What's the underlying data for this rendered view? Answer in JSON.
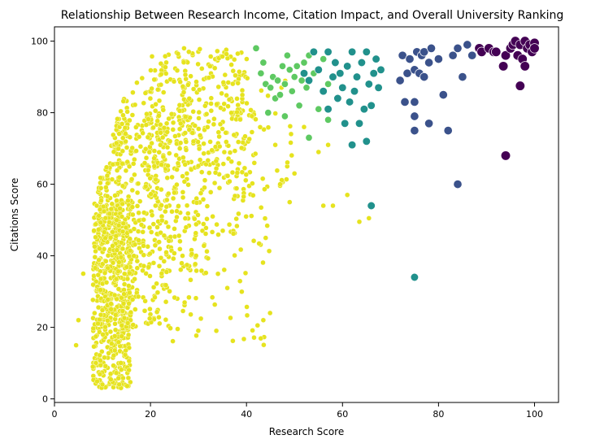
{
  "chart_data": {
    "type": "scatter",
    "title": "Relationship Between Research Income, Citation Impact, and Overall University Ranking",
    "xlabel": "Research Score",
    "ylabel": "Citations Score",
    "xlim": [
      0,
      105
    ],
    "ylim": [
      -1,
      104
    ],
    "xticks": [
      0,
      20,
      40,
      60,
      80,
      100
    ],
    "yticks": [
      0,
      20,
      40,
      60,
      80,
      100
    ],
    "grid": false,
    "legend": "none",
    "color_scale": "viridis (dark purple = best rank, yellow = lower rank)",
    "colors": {
      "purple": "#440154",
      "indigo": "#3b528b",
      "teal": "#21918c",
      "green": "#5ec962",
      "yellow": "#e6e31e",
      "marker_edge": "#ffffff"
    },
    "clusters": [
      {
        "n": 520,
        "x": [
          8,
          16
        ],
        "y": [
          3,
          55
        ]
      },
      {
        "n": 380,
        "x": [
          9,
          24
        ],
        "y": [
          20,
          80
        ]
      },
      {
        "n": 260,
        "x": [
          12,
          32
        ],
        "y": [
          35,
          92
        ]
      },
      {
        "n": 200,
        "x": [
          20,
          40
        ],
        "y": [
          45,
          98
        ]
      },
      {
        "n": 110,
        "x": [
          26,
          42
        ],
        "y": [
          60,
          95
        ]
      },
      {
        "n": 70,
        "x": [
          22,
          45
        ],
        "y": [
          15,
          60
        ]
      },
      {
        "n": 40,
        "x": [
          36,
          50
        ],
        "y": [
          55,
          90
        ]
      }
    ],
    "points": [
      {
        "x": 4.5,
        "y": 15,
        "s": "yellow"
      },
      {
        "x": 5,
        "y": 22,
        "s": "yellow"
      },
      {
        "x": 6,
        "y": 35,
        "s": "yellow"
      },
      {
        "x": 8,
        "y": 9,
        "s": "yellow"
      },
      {
        "x": 10,
        "y": 4,
        "s": "yellow"
      },
      {
        "x": 27,
        "y": 98,
        "s": "yellow"
      },
      {
        "x": 28,
        "y": 97,
        "s": "yellow"
      },
      {
        "x": 43.5,
        "y": 22,
        "s": "yellow"
      },
      {
        "x": 36,
        "y": 31,
        "s": "yellow"
      },
      {
        "x": 49,
        "y": 55,
        "s": "yellow"
      },
      {
        "x": 50,
        "y": 63,
        "s": "yellow"
      },
      {
        "x": 56,
        "y": 54,
        "s": "yellow"
      },
      {
        "x": 58,
        "y": 54,
        "s": "yellow"
      },
      {
        "x": 61,
        "y": 57,
        "s": "yellow"
      },
      {
        "x": 63.5,
        "y": 49.5,
        "s": "yellow"
      },
      {
        "x": 65.5,
        "y": 50.5,
        "s": "yellow"
      },
      {
        "x": 44,
        "y": 45,
        "s": "yellow"
      },
      {
        "x": 47,
        "y": 60,
        "s": "yellow"
      },
      {
        "x": 52,
        "y": 76,
        "s": "yellow"
      },
      {
        "x": 55,
        "y": 69,
        "s": "yellow"
      },
      {
        "x": 57,
        "y": 71,
        "s": "yellow"
      },
      {
        "x": 46,
        "y": 71,
        "s": "yellow"
      },
      {
        "x": 42,
        "y": 98,
        "s": "green"
      },
      {
        "x": 43,
        "y": 91,
        "s": "green"
      },
      {
        "x": 44,
        "y": 88,
        "s": "green"
      },
      {
        "x": 45,
        "y": 87,
        "s": "green"
      },
      {
        "x": 45.5,
        "y": 90,
        "s": "green"
      },
      {
        "x": 46,
        "y": 84,
        "s": "green"
      },
      {
        "x": 46.5,
        "y": 89,
        "s": "green"
      },
      {
        "x": 47,
        "y": 85,
        "s": "green"
      },
      {
        "x": 47.5,
        "y": 93,
        "s": "green"
      },
      {
        "x": 48,
        "y": 88,
        "s": "green"
      },
      {
        "x": 48.5,
        "y": 96,
        "s": "green"
      },
      {
        "x": 49,
        "y": 92,
        "s": "green"
      },
      {
        "x": 49.5,
        "y": 86,
        "s": "green"
      },
      {
        "x": 50,
        "y": 90,
        "s": "green"
      },
      {
        "x": 50.5,
        "y": 93,
        "s": "green"
      },
      {
        "x": 51,
        "y": 82,
        "s": "green"
      },
      {
        "x": 51.5,
        "y": 89,
        "s": "green"
      },
      {
        "x": 52,
        "y": 94,
        "s": "green"
      },
      {
        "x": 52.5,
        "y": 87,
        "s": "green"
      },
      {
        "x": 53,
        "y": 96,
        "s": "green"
      },
      {
        "x": 54,
        "y": 91,
        "s": "green"
      },
      {
        "x": 55,
        "y": 81,
        "s": "green"
      },
      {
        "x": 56,
        "y": 95,
        "s": "green"
      },
      {
        "x": 57,
        "y": 88,
        "s": "green"
      },
      {
        "x": 44.5,
        "y": 80,
        "s": "green"
      },
      {
        "x": 48,
        "y": 79,
        "s": "green"
      },
      {
        "x": 53,
        "y": 73,
        "s": "green"
      },
      {
        "x": 57,
        "y": 78,
        "s": "green"
      },
      {
        "x": 43.5,
        "y": 94,
        "s": "green"
      },
      {
        "x": 52,
        "y": 91,
        "s": "teal"
      },
      {
        "x": 53,
        "y": 89,
        "s": "teal"
      },
      {
        "x": 54,
        "y": 97,
        "s": "teal"
      },
      {
        "x": 55,
        "y": 92,
        "s": "teal"
      },
      {
        "x": 56,
        "y": 86,
        "s": "teal"
      },
      {
        "x": 57,
        "y": 97,
        "s": "teal"
      },
      {
        "x": 58,
        "y": 90,
        "s": "teal"
      },
      {
        "x": 58.5,
        "y": 94,
        "s": "teal"
      },
      {
        "x": 59,
        "y": 84,
        "s": "teal"
      },
      {
        "x": 59.5,
        "y": 91,
        "s": "teal"
      },
      {
        "x": 60,
        "y": 87,
        "s": "teal"
      },
      {
        "x": 61,
        "y": 93,
        "s": "teal"
      },
      {
        "x": 61.5,
        "y": 83,
        "s": "teal"
      },
      {
        "x": 62,
        "y": 97,
        "s": "teal"
      },
      {
        "x": 62.5,
        "y": 86,
        "s": "teal"
      },
      {
        "x": 63,
        "y": 90,
        "s": "teal"
      },
      {
        "x": 63.5,
        "y": 77,
        "s": "teal"
      },
      {
        "x": 64,
        "y": 94,
        "s": "teal"
      },
      {
        "x": 64.5,
        "y": 81,
        "s": "teal"
      },
      {
        "x": 65,
        "y": 97,
        "s": "teal"
      },
      {
        "x": 65.5,
        "y": 88,
        "s": "teal"
      },
      {
        "x": 66,
        "y": 82,
        "s": "teal"
      },
      {
        "x": 66.5,
        "y": 91,
        "s": "teal"
      },
      {
        "x": 67,
        "y": 95,
        "s": "teal"
      },
      {
        "x": 67.5,
        "y": 87,
        "s": "teal"
      },
      {
        "x": 68,
        "y": 92,
        "s": "teal"
      },
      {
        "x": 62,
        "y": 71,
        "s": "teal"
      },
      {
        "x": 65,
        "y": 72,
        "s": "teal"
      },
      {
        "x": 60.5,
        "y": 77,
        "s": "teal"
      },
      {
        "x": 66,
        "y": 54,
        "s": "teal"
      },
      {
        "x": 75,
        "y": 34,
        "s": "teal"
      },
      {
        "x": 57,
        "y": 81,
        "s": "teal"
      },
      {
        "x": 72,
        "y": 89,
        "s": "indigo"
      },
      {
        "x": 72.5,
        "y": 96,
        "s": "indigo"
      },
      {
        "x": 73,
        "y": 83,
        "s": "indigo"
      },
      {
        "x": 73.5,
        "y": 91,
        "s": "indigo"
      },
      {
        "x": 74,
        "y": 95,
        "s": "indigo"
      },
      {
        "x": 75,
        "y": 92,
        "s": "indigo"
      },
      {
        "x": 75,
        "y": 83,
        "s": "indigo"
      },
      {
        "x": 75.5,
        "y": 97,
        "s": "indigo"
      },
      {
        "x": 75,
        "y": 79,
        "s": "indigo"
      },
      {
        "x": 75,
        "y": 75,
        "s": "indigo"
      },
      {
        "x": 76,
        "y": 91,
        "s": "indigo"
      },
      {
        "x": 76.5,
        "y": 96,
        "s": "indigo"
      },
      {
        "x": 77,
        "y": 97,
        "s": "indigo"
      },
      {
        "x": 78,
        "y": 77,
        "s": "indigo"
      },
      {
        "x": 78,
        "y": 94,
        "s": "indigo"
      },
      {
        "x": 78.5,
        "y": 98,
        "s": "indigo"
      },
      {
        "x": 80,
        "y": 95,
        "s": "indigo"
      },
      {
        "x": 81,
        "y": 85,
        "s": "indigo"
      },
      {
        "x": 82,
        "y": 75,
        "s": "indigo"
      },
      {
        "x": 83,
        "y": 96,
        "s": "indigo"
      },
      {
        "x": 84,
        "y": 98,
        "s": "indigo"
      },
      {
        "x": 84,
        "y": 60,
        "s": "indigo"
      },
      {
        "x": 85,
        "y": 90,
        "s": "indigo"
      },
      {
        "x": 86,
        "y": 99,
        "s": "indigo"
      },
      {
        "x": 87,
        "y": 96,
        "s": "indigo"
      },
      {
        "x": 74,
        "y": 95,
        "s": "indigo"
      },
      {
        "x": 77,
        "y": 90,
        "s": "indigo"
      },
      {
        "x": 88.5,
        "y": 98,
        "s": "purple"
      },
      {
        "x": 89,
        "y": 97,
        "s": "purple"
      },
      {
        "x": 90.5,
        "y": 98,
        "s": "purple"
      },
      {
        "x": 91.5,
        "y": 97,
        "s": "purple"
      },
      {
        "x": 92,
        "y": 97,
        "s": "purple"
      },
      {
        "x": 93.5,
        "y": 93,
        "s": "purple"
      },
      {
        "x": 94,
        "y": 96,
        "s": "purple"
      },
      {
        "x": 94,
        "y": 68,
        "s": "purple"
      },
      {
        "x": 95,
        "y": 98,
        "s": "purple"
      },
      {
        "x": 95.5,
        "y": 99,
        "s": "purple"
      },
      {
        "x": 96,
        "y": 100,
        "s": "purple"
      },
      {
        "x": 96.5,
        "y": 96,
        "s": "purple"
      },
      {
        "x": 97,
        "y": 99,
        "s": "purple"
      },
      {
        "x": 97,
        "y": 87.5,
        "s": "purple"
      },
      {
        "x": 97.5,
        "y": 95,
        "s": "purple"
      },
      {
        "x": 98,
        "y": 100,
        "s": "purple"
      },
      {
        "x": 98,
        "y": 93,
        "s": "purple"
      },
      {
        "x": 98.5,
        "y": 98,
        "s": "purple"
      },
      {
        "x": 99,
        "y": 99,
        "s": "purple"
      },
      {
        "x": 99.5,
        "y": 97,
        "s": "purple"
      },
      {
        "x": 100,
        "y": 99.5,
        "s": "purple"
      },
      {
        "x": 100,
        "y": 98,
        "s": "purple"
      }
    ]
  }
}
